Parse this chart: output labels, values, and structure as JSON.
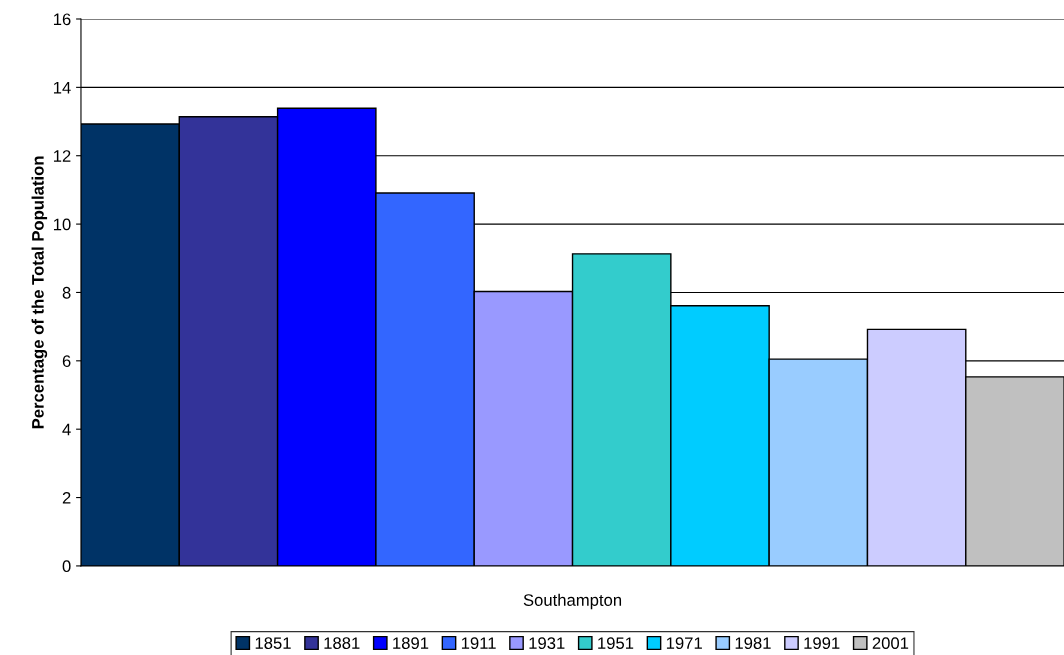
{
  "chart_data": {
    "type": "bar",
    "ylabel": "Percentage of the Total Population",
    "categories": [
      "Southampton"
    ],
    "series": [
      {
        "name": "1851",
        "color": "#003366",
        "values": [
          12.93
        ]
      },
      {
        "name": "1881",
        "color": "#333399",
        "values": [
          13.14
        ]
      },
      {
        "name": "1891",
        "color": "#0000ff",
        "values": [
          13.39
        ]
      },
      {
        "name": "1911",
        "color": "#3366ff",
        "values": [
          10.91
        ]
      },
      {
        "name": "1931",
        "color": "#9999ff",
        "values": [
          8.03
        ]
      },
      {
        "name": "1951",
        "color": "#33cccc",
        "values": [
          9.13
        ]
      },
      {
        "name": "1971",
        "color": "#00ccff",
        "values": [
          7.61
        ]
      },
      {
        "name": "1981",
        "color": "#99ccff",
        "values": [
          6.05
        ]
      },
      {
        "name": "1991",
        "color": "#ccccff",
        "values": [
          6.92
        ]
      },
      {
        "name": "2001",
        "color": "#c0c0c0",
        "values": [
          5.53
        ]
      }
    ],
    "ylim": [
      0,
      16
    ],
    "yticks": [
      0,
      2,
      4,
      6,
      8,
      10,
      12,
      14,
      16
    ],
    "grid": "y",
    "legend": "bottom"
  }
}
